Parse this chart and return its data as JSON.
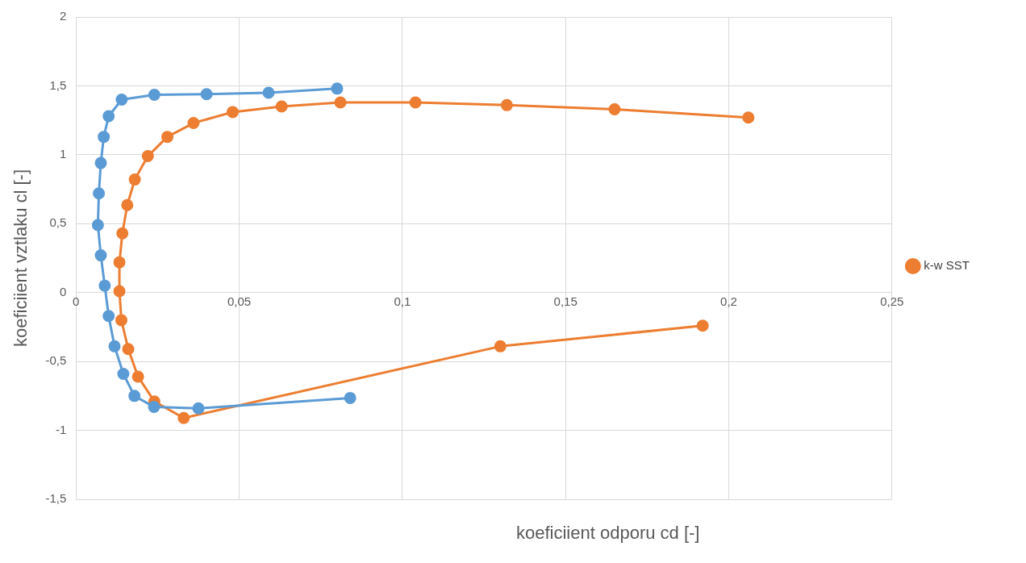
{
  "chart_data": {
    "type": "line",
    "xlabel": "koeficiient odporu cd [-]",
    "ylabel": "koeficiient vztlaku cl [-]",
    "xlim": [
      0,
      0.25
    ],
    "ylim": [
      -1.5,
      2
    ],
    "xticks": [
      0,
      {
        "value": 0.05,
        "label": "0,05"
      },
      {
        "value": 0.1,
        "label": "0,1"
      },
      {
        "value": 0.15,
        "label": "0,15"
      },
      {
        "value": 0.2,
        "label": "0,2"
      },
      {
        "value": 0.25,
        "label": "0,25"
      }
    ],
    "yticks": [
      {
        "value": -1.5,
        "label": "-1,5"
      },
      -1,
      {
        "value": -0.5,
        "label": "-0,5"
      },
      0,
      {
        "value": 0.5,
        "label": "0,5"
      },
      1,
      {
        "value": 1.5,
        "label": "1,5"
      },
      2
    ],
    "grid": true,
    "legend": "right",
    "marker": "circle",
    "line_style": "solid",
    "series": [
      {
        "color": "#5b9bd5",
        "x": [
          0.08,
          0.059,
          0.04,
          0.024,
          0.014,
          0.01,
          0.0085,
          0.0076,
          0.007,
          0.0067,
          0.0076,
          0.0088,
          0.01,
          0.0118,
          0.0145,
          0.0179,
          0.0239,
          0.0375,
          0.084
        ],
        "values": [
          1.48,
          1.45,
          1.44,
          1.435,
          1.4,
          1.28,
          1.13,
          0.94,
          0.72,
          0.49,
          0.27,
          0.05,
          -0.17,
          -0.39,
          -0.59,
          -0.75,
          -0.83,
          -0.84,
          -0.765
        ]
      },
      {
        "name": "k-w SST",
        "color": "#ed7d31",
        "x": [
          0.206,
          0.165,
          0.132,
          0.104,
          0.081,
          0.063,
          0.048,
          0.036,
          0.028,
          0.022,
          0.018,
          0.0157,
          0.0142,
          0.0133,
          0.0133,
          0.0139,
          0.016,
          0.019,
          0.024,
          0.033,
          0.13,
          0.192
        ],
        "values": [
          1.27,
          1.33,
          1.36,
          1.38,
          1.38,
          1.35,
          1.31,
          1.23,
          1.13,
          0.99,
          0.82,
          0.635,
          0.43,
          0.22,
          0.01,
          -0.2,
          -0.41,
          -0.61,
          -0.79,
          -0.91,
          -0.39,
          -0.24
        ]
      }
    ]
  }
}
